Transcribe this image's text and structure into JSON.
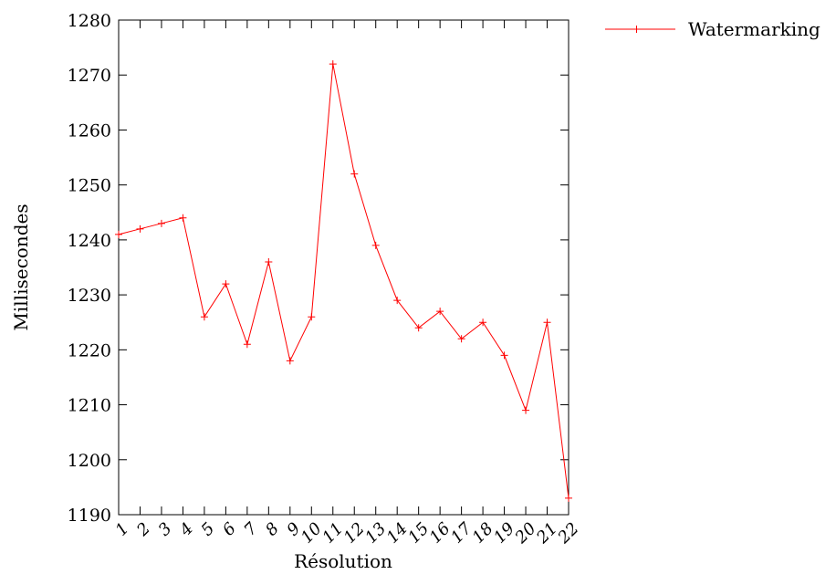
{
  "chart_data": {
    "type": "line",
    "xlabel": "Résolution",
    "ylabel": "Millisecondes",
    "ylim": [
      1190,
      1280
    ],
    "yticks": [
      "1190",
      "1200",
      "1210",
      "1220",
      "1230",
      "1240",
      "1250",
      "1260",
      "1270",
      "1280"
    ],
    "categories": [
      "1",
      "2",
      "3",
      "4",
      "5",
      "6",
      "7",
      "8",
      "9",
      "10",
      "11",
      "12",
      "13",
      "14",
      "15",
      "16",
      "17",
      "18",
      "19",
      "20",
      "21",
      "22"
    ],
    "series": [
      {
        "name": "Watermarking",
        "color": "#ff0000",
        "marker": "plus",
        "values": [
          1241,
          1242,
          1243,
          1244,
          1226,
          1232,
          1221,
          1236,
          1218,
          1226,
          1272,
          1252,
          1239,
          1229,
          1224,
          1227,
          1222,
          1225,
          1219,
          1209,
          1225,
          1193
        ]
      }
    ],
    "legend_position": "top-right",
    "grid": false
  }
}
